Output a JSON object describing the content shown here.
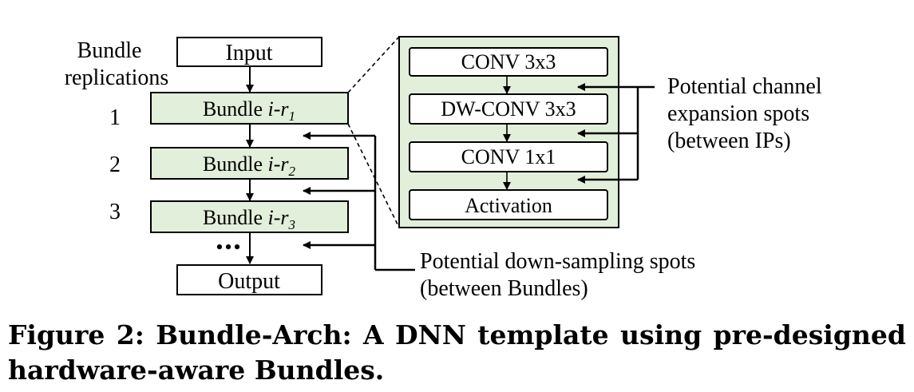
{
  "diagram": {
    "left_label_line1": "Bundle",
    "left_label_line2": "replications",
    "input_label": "Input",
    "output_label": "Output",
    "replication_numbers": [
      "1",
      "2",
      "3"
    ],
    "bundles": [
      {
        "prefix": "Bundle ",
        "var": "i-r",
        "sub": "1"
      },
      {
        "prefix": "Bundle ",
        "var": "i-r",
        "sub": "2"
      },
      {
        "prefix": "Bundle ",
        "var": "i-r",
        "sub": "3"
      }
    ],
    "ellipsis": "•••",
    "ips": [
      "CONV 3x3",
      "DW-CONV 3x3",
      "CONV 1x1",
      "Activation"
    ],
    "channel_note_line1": "Potential channel",
    "channel_note_line2": "expansion spots",
    "channel_note_line3": "(between IPs)",
    "downsample_note_line1": "Potential down-sampling spots",
    "downsample_note_line2": "(between Bundles)",
    "colors": {
      "bundle_fill": "#e2efda",
      "stroke": "#000000",
      "background": "#ffffff"
    }
  },
  "caption": "Figure 2: Bundle-Arch: A DNN template using pre-designed hardware-aware Bundles."
}
